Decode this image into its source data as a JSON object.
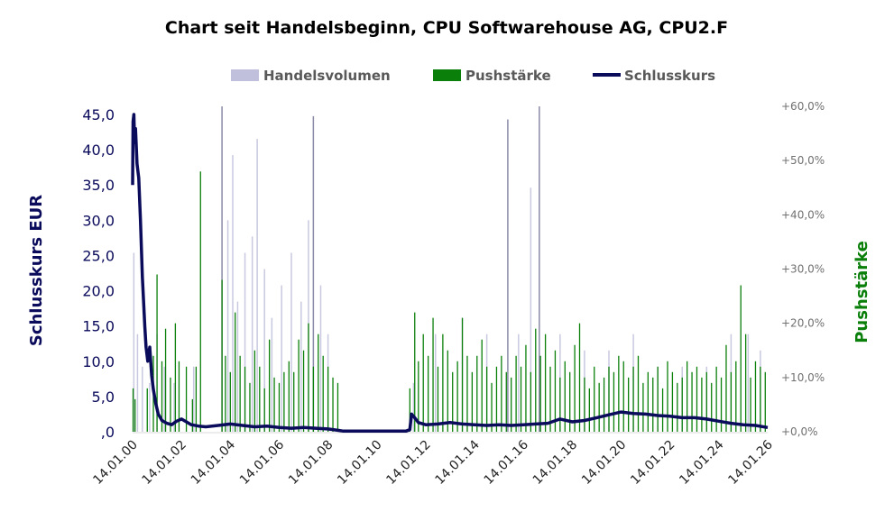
{
  "chart_data": {
    "type": "bar+line",
    "title": "Chart seit Handelsbeginn, CPU Softwarehouse AG, CPU2.F",
    "legend": [
      {
        "label": "Handelsvolumen",
        "color": "#c0c0dc"
      },
      {
        "label": "Pushstärke",
        "color": "#0a7f0a"
      },
      {
        "label": "Schlusskurs",
        "color": "#0b0b5c"
      }
    ],
    "legend_position": "top-center",
    "ylabel": "Schlusskurs EUR",
    "y2label": "Pushstärke",
    "ylim": [
      0,
      45
    ],
    "y2lim": [
      0,
      60
    ],
    "yticks": [
      ",0",
      "5,0",
      "10,0",
      "15,0",
      "20,0",
      "25,0",
      "30,0",
      "35,0",
      "40,0",
      "45,0"
    ],
    "y2ticks": [
      "+0,0%",
      "+10,0%",
      "+20,0%",
      "+30,0%",
      "+40,0%",
      "+50,0%",
      "+60,0%"
    ],
    "xticks": [
      "14.01.00",
      "14.01.02",
      "14.01.04",
      "14.01.06",
      "14.01.08",
      "14.01.10",
      "14.01.12",
      "14.01.14",
      "14.01.16",
      "14.01.18",
      "14.01.20",
      "14.01.22",
      "14.01.24",
      "14.01.26"
    ],
    "x_unit": "years since 14.01.2000",
    "xlim": [
      0,
      26
    ],
    "schlusskurs": [
      [
        0,
        35
      ],
      [
        0.02,
        44
      ],
      [
        0.05,
        45
      ],
      [
        0.08,
        41
      ],
      [
        0.12,
        43
      ],
      [
        0.18,
        38
      ],
      [
        0.25,
        36
      ],
      [
        0.32,
        30
      ],
      [
        0.4,
        22
      ],
      [
        0.5,
        15
      ],
      [
        0.55,
        12
      ],
      [
        0.62,
        10
      ],
      [
        0.7,
        12
      ],
      [
        0.78,
        8
      ],
      [
        0.85,
        6
      ],
      [
        0.95,
        4
      ],
      [
        1.05,
        2.5
      ],
      [
        1.2,
        1.6
      ],
      [
        1.4,
        1.2
      ],
      [
        1.6,
        1.0
      ],
      [
        1.8,
        1.5
      ],
      [
        2.0,
        1.8
      ],
      [
        2.2,
        1.4
      ],
      [
        2.4,
        1.0
      ],
      [
        2.7,
        0.8
      ],
      [
        3.0,
        0.7
      ],
      [
        3.5,
        0.9
      ],
      [
        4.0,
        1.1
      ],
      [
        4.5,
        0.9
      ],
      [
        5.0,
        0.7
      ],
      [
        5.5,
        0.8
      ],
      [
        6.0,
        0.6
      ],
      [
        6.5,
        0.5
      ],
      [
        7.0,
        0.6
      ],
      [
        7.5,
        0.5
      ],
      [
        8.0,
        0.4
      ],
      [
        8.4,
        0.2
      ],
      [
        8.6,
        0.1
      ],
      [
        9.5,
        0.1
      ],
      [
        10.5,
        0.1
      ],
      [
        11.2,
        0.1
      ],
      [
        11.35,
        0.3
      ],
      [
        11.42,
        2.5
      ],
      [
        11.55,
        2.0
      ],
      [
        11.7,
        1.3
      ],
      [
        12.0,
        1.0
      ],
      [
        12.5,
        1.1
      ],
      [
        13.0,
        1.3
      ],
      [
        13.5,
        1.1
      ],
      [
        14.0,
        1.0
      ],
      [
        14.5,
        0.9
      ],
      [
        15.0,
        1.0
      ],
      [
        15.5,
        0.9
      ],
      [
        16.0,
        1.0
      ],
      [
        16.5,
        1.1
      ],
      [
        17.0,
        1.2
      ],
      [
        17.5,
        1.8
      ],
      [
        18.0,
        1.4
      ],
      [
        18.5,
        1.6
      ],
      [
        19.0,
        2.0
      ],
      [
        19.5,
        2.4
      ],
      [
        20.0,
        2.8
      ],
      [
        20.5,
        2.6
      ],
      [
        21.0,
        2.5
      ],
      [
        21.5,
        2.3
      ],
      [
        22.0,
        2.2
      ],
      [
        22.5,
        2.0
      ],
      [
        23.0,
        2.0
      ],
      [
        23.5,
        1.8
      ],
      [
        24.0,
        1.5
      ],
      [
        24.5,
        1.2
      ],
      [
        25.0,
        1.0
      ],
      [
        25.5,
        0.9
      ],
      [
        26.0,
        0.6
      ]
    ],
    "pushstaerke_pct": [
      [
        0.02,
        8
      ],
      [
        0.1,
        6
      ],
      [
        0.6,
        8
      ],
      [
        0.85,
        14
      ],
      [
        1.0,
        29
      ],
      [
        1.2,
        13
      ],
      [
        1.35,
        19
      ],
      [
        1.55,
        10
      ],
      [
        1.75,
        20
      ],
      [
        1.9,
        13
      ],
      [
        2.2,
        12
      ],
      [
        2.45,
        6
      ],
      [
        2.6,
        12
      ],
      [
        2.78,
        48
      ],
      [
        3.66,
        28
      ],
      [
        3.8,
        14
      ],
      [
        4.0,
        11
      ],
      [
        4.2,
        22
      ],
      [
        4.4,
        14
      ],
      [
        4.6,
        12
      ],
      [
        4.8,
        9
      ],
      [
        5.0,
        15
      ],
      [
        5.2,
        12
      ],
      [
        5.4,
        8
      ],
      [
        5.6,
        17
      ],
      [
        5.8,
        10
      ],
      [
        6.0,
        9
      ],
      [
        6.2,
        11
      ],
      [
        6.4,
        13
      ],
      [
        6.6,
        11
      ],
      [
        6.8,
        17
      ],
      [
        7.0,
        15
      ],
      [
        7.2,
        20
      ],
      [
        7.4,
        12
      ],
      [
        7.6,
        18
      ],
      [
        7.8,
        14
      ],
      [
        8.0,
        12
      ],
      [
        8.2,
        10
      ],
      [
        8.4,
        9
      ],
      [
        11.35,
        8
      ],
      [
        11.55,
        22
      ],
      [
        11.7,
        13
      ],
      [
        11.9,
        18
      ],
      [
        12.1,
        14
      ],
      [
        12.3,
        21
      ],
      [
        12.5,
        12
      ],
      [
        12.7,
        18
      ],
      [
        12.9,
        15
      ],
      [
        13.1,
        11
      ],
      [
        13.3,
        13
      ],
      [
        13.5,
        21
      ],
      [
        13.7,
        14
      ],
      [
        13.9,
        11
      ],
      [
        14.1,
        14
      ],
      [
        14.3,
        17
      ],
      [
        14.5,
        12
      ],
      [
        14.7,
        9
      ],
      [
        14.9,
        12
      ],
      [
        15.1,
        14
      ],
      [
        15.3,
        11
      ],
      [
        15.5,
        10
      ],
      [
        15.7,
        14
      ],
      [
        15.9,
        12
      ],
      [
        16.1,
        16
      ],
      [
        16.3,
        11
      ],
      [
        16.5,
        19
      ],
      [
        16.7,
        14
      ],
      [
        16.9,
        18
      ],
      [
        17.1,
        12
      ],
      [
        17.3,
        15
      ],
      [
        17.5,
        10
      ],
      [
        17.7,
        13
      ],
      [
        17.9,
        11
      ],
      [
        18.1,
        16
      ],
      [
        18.3,
        20
      ],
      [
        18.5,
        10
      ],
      [
        18.7,
        8
      ],
      [
        18.9,
        12
      ],
      [
        19.1,
        9
      ],
      [
        19.3,
        10
      ],
      [
        19.5,
        12
      ],
      [
        19.7,
        11
      ],
      [
        19.9,
        14
      ],
      [
        20.1,
        13
      ],
      [
        20.3,
        10
      ],
      [
        20.5,
        12
      ],
      [
        20.7,
        14
      ],
      [
        20.9,
        9
      ],
      [
        21.1,
        11
      ],
      [
        21.3,
        10
      ],
      [
        21.5,
        12
      ],
      [
        21.7,
        8
      ],
      [
        21.9,
        13
      ],
      [
        22.1,
        11
      ],
      [
        22.3,
        9
      ],
      [
        22.5,
        10
      ],
      [
        22.7,
        13
      ],
      [
        22.9,
        11
      ],
      [
        23.1,
        12
      ],
      [
        23.3,
        10
      ],
      [
        23.5,
        11
      ],
      [
        23.7,
        9
      ],
      [
        23.9,
        12
      ],
      [
        24.1,
        10
      ],
      [
        24.3,
        16
      ],
      [
        24.5,
        11
      ],
      [
        24.7,
        13
      ],
      [
        24.9,
        27
      ],
      [
        25.1,
        18
      ],
      [
        25.3,
        10
      ],
      [
        25.5,
        13
      ],
      [
        25.7,
        12
      ],
      [
        25.9,
        11
      ]
    ],
    "handelsvolumen_rel": [
      [
        0.05,
        0.55
      ],
      [
        0.2,
        0.3
      ],
      [
        0.4,
        0.2
      ],
      [
        0.7,
        0.15
      ],
      [
        1.0,
        0.3
      ],
      [
        1.3,
        0.2
      ],
      [
        1.7,
        0.15
      ],
      [
        2.5,
        0.2
      ],
      [
        3.66,
        1.0
      ],
      [
        3.9,
        0.65
      ],
      [
        4.1,
        0.85
      ],
      [
        4.3,
        0.4
      ],
      [
        4.6,
        0.55
      ],
      [
        4.9,
        0.6
      ],
      [
        5.1,
        0.9
      ],
      [
        5.4,
        0.5
      ],
      [
        5.7,
        0.35
      ],
      [
        6.1,
        0.45
      ],
      [
        6.5,
        0.55
      ],
      [
        6.9,
        0.4
      ],
      [
        7.2,
        0.65
      ],
      [
        7.4,
        0.97
      ],
      [
        7.7,
        0.45
      ],
      [
        8.0,
        0.3
      ],
      [
        11.5,
        0.15
      ],
      [
        12.4,
        0.3
      ],
      [
        13.5,
        0.35
      ],
      [
        14.5,
        0.3
      ],
      [
        15.36,
        0.96
      ],
      [
        15.8,
        0.3
      ],
      [
        16.3,
        0.75
      ],
      [
        16.65,
        1.0
      ],
      [
        17.5,
        0.3
      ],
      [
        18.5,
        0.25
      ],
      [
        19.5,
        0.25
      ],
      [
        20.5,
        0.3
      ],
      [
        21.5,
        0.2
      ],
      [
        22.5,
        0.2
      ],
      [
        23.5,
        0.2
      ],
      [
        24.5,
        0.3
      ],
      [
        25.2,
        0.3
      ],
      [
        25.7,
        0.25
      ]
    ]
  }
}
